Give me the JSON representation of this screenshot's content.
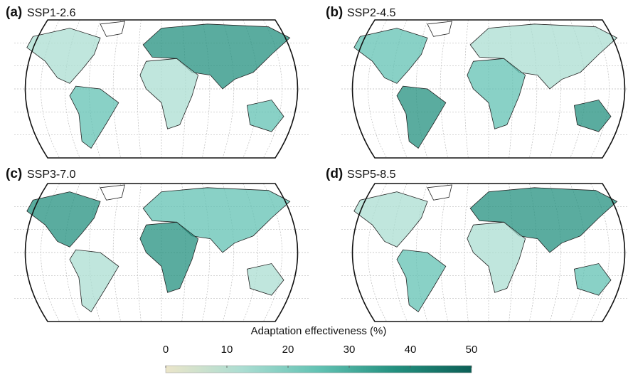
{
  "panels": [
    {
      "letter": "(a)",
      "scenario": "SSP1-2.6"
    },
    {
      "letter": "(b)",
      "scenario": "SSP2-4.5"
    },
    {
      "letter": "(c)",
      "scenario": "SSP3-7.0"
    },
    {
      "letter": "(d)",
      "scenario": "SSP5-8.5"
    }
  ],
  "colorbar": {
    "label": "Adaptation effectiveness (%)",
    "range": [
      0,
      50
    ],
    "ticks": [
      0,
      10,
      20,
      30,
      40,
      50
    ],
    "colors": [
      "#ebe5c9",
      "#abddd2",
      "#62c2b3",
      "#23907f",
      "#0c5f56"
    ]
  }
}
